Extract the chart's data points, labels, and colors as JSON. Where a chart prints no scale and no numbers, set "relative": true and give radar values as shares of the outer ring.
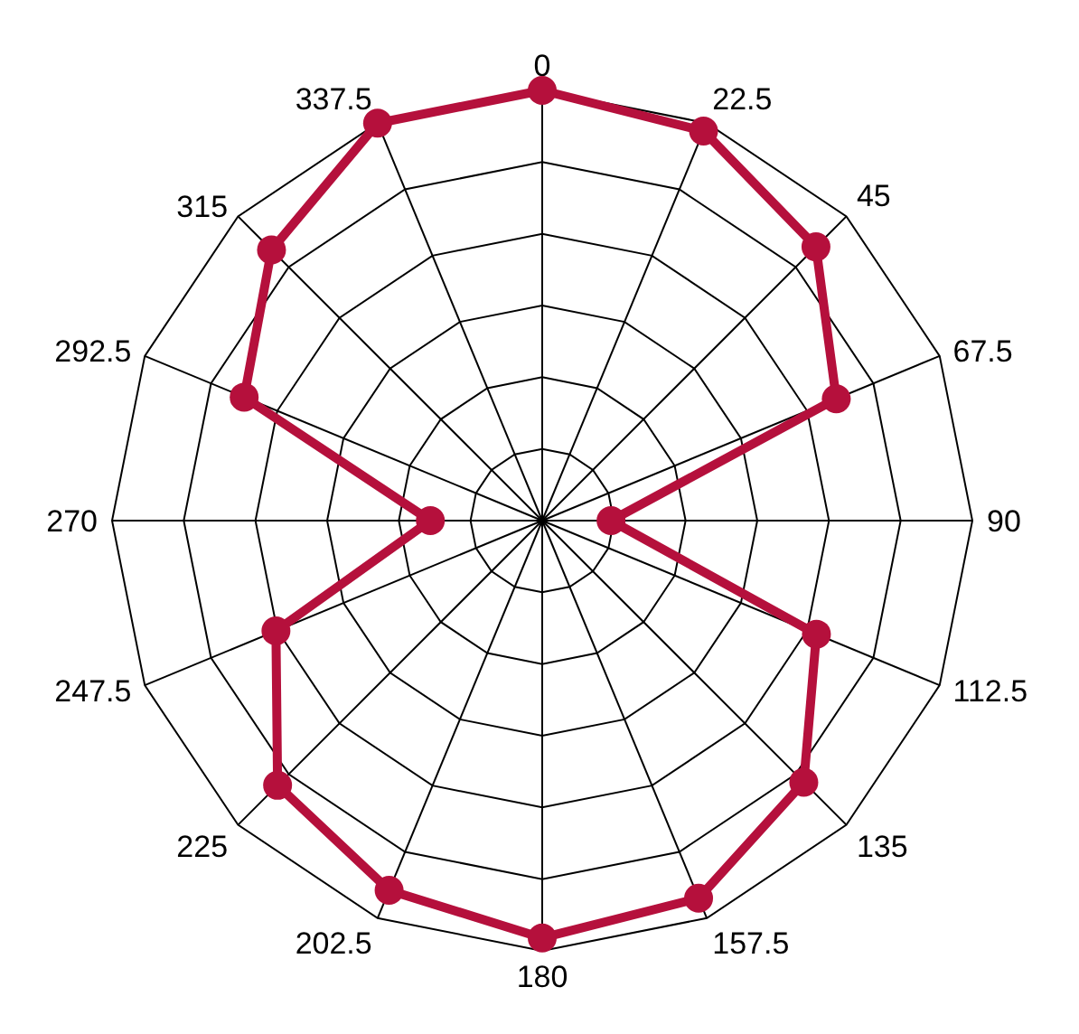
{
  "chart_data": {
    "type": "radar",
    "relative": true,
    "grid": true,
    "marker": "circle",
    "categories": [
      "0",
      "22.5",
      "45",
      "67.5",
      "90",
      "112.5",
      "135",
      "157.5",
      "180",
      "202.5",
      "225",
      "247.5",
      "270",
      "292.5",
      "315",
      "337.5"
    ],
    "series": [
      {
        "color": "#b5103c",
        "values": [
          1.0,
          0.98,
          0.9,
          0.74,
          0.16,
          0.69,
          0.86,
          0.95,
          0.97,
          0.93,
          0.87,
          0.67,
          0.26,
          0.75,
          0.89,
          1.0
        ]
      }
    ]
  }
}
